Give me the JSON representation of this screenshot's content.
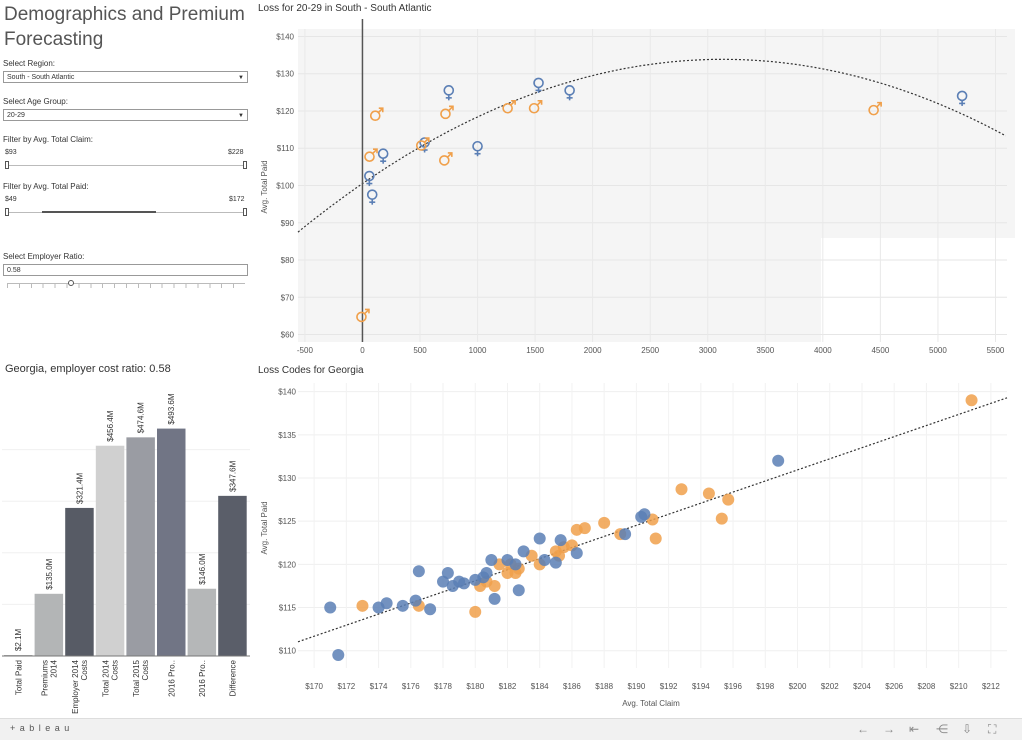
{
  "dashboard": {
    "title": "Demographics and Premium Forecasting"
  },
  "filters": {
    "region_label": "Select Region:",
    "region_value": "South - South Atlantic",
    "age_label": "Select Age Group:",
    "age_value": "20-29",
    "claim_label": "Filter by Avg. Total Claim:",
    "claim_min": "$93",
    "claim_max": "$228",
    "paid_label": "Filter by Avg. Total Paid:",
    "paid_min": "$49",
    "paid_max": "$172",
    "ratio_label": "Select Employer Ratio:",
    "ratio_value": "0.58"
  },
  "loss_chart": {
    "title": "Loss for 20-29 in South - South Atlantic",
    "ylabel": "Avg. Total Paid"
  },
  "georgia_bar": {
    "title": "Georgia, employer cost ratio: 0.58"
  },
  "loss_codes": {
    "title": "Loss Codes for Georgia",
    "ylabel": "Avg. Total Paid",
    "xlabel": "Avg. Total Claim"
  },
  "footer": {
    "logo": "+ a b l e a u"
  },
  "colors": {
    "female": "#5b7fb5",
    "male": "#f0a04b",
    "bar_total_paid": "#a9a9a9",
    "bar_premiums": "#b3b5b6",
    "bar_employer": "#575b65",
    "bar_total2014": "#d0d0d0",
    "bar_total2015": "#9a9ca3",
    "bar_2016pro": "#717585",
    "bar_2016pro2": "#b5b7b8",
    "bar_difference": "#5a5e69"
  },
  "chart_data": [
    {
      "type": "scatter",
      "title": "Loss for 20-29 in South - South Atlantic",
      "ylabel": "Avg. Total Paid",
      "xlim": [
        -560,
        5600
      ],
      "ylim": [
        58,
        142
      ],
      "x_ticks": [
        "-500",
        "0",
        "500",
        "1000",
        "1500",
        "2000",
        "2500",
        "3000",
        "3500",
        "4000",
        "4500",
        "5000",
        "5500"
      ],
      "x_tick_values": [
        -500,
        0,
        500,
        1000,
        1500,
        2000,
        2500,
        3000,
        3500,
        4000,
        4500,
        5000,
        5500
      ],
      "y_ticks": [
        "$60",
        "$70",
        "$80",
        "$90",
        "$100",
        "$110",
        "$120",
        "$130",
        "$140"
      ],
      "y_tick_values": [
        60,
        70,
        80,
        90,
        100,
        110,
        120,
        130,
        140
      ],
      "series": [
        {
          "name": "female",
          "points": [
            [
              60,
              102
            ],
            [
              85,
              97
            ],
            [
              180,
              108
            ],
            [
              540,
              111
            ],
            [
              750,
              125
            ],
            [
              1000,
              110
            ],
            [
              1530,
              127
            ],
            [
              1800,
              125
            ],
            [
              5210,
              123.5
            ]
          ]
        },
        {
          "name": "male",
          "points": [
            [
              0,
              65
            ],
            [
              70,
              108
            ],
            [
              120,
              119
            ],
            [
              520,
              111
            ],
            [
              720,
              107
            ],
            [
              730,
              119.5
            ],
            [
              1270,
              121
            ],
            [
              1500,
              121
            ],
            [
              4450,
              120.5
            ]
          ]
        }
      ],
      "trend": "polynomial"
    },
    {
      "type": "bar",
      "title": "Georgia, employer cost ratio: 0.58",
      "categories": [
        "Total Paid",
        "Premiums 2014",
        "Employer 2014 Costs",
        "Total 2014 Costs",
        "Total 2015 Costs",
        "2016 Pro..",
        "2016 Pro..",
        "Difference"
      ],
      "values": [
        2.1,
        135.0,
        321.4,
        456.4,
        474.6,
        493.6,
        146.0,
        347.6
      ],
      "labels": [
        "$2.1M",
        "$135.0M",
        "$321.4M",
        "$456.4M",
        "$474.6M",
        "$493.6M",
        "$146.0M",
        "$347.6M"
      ],
      "ylim": [
        0,
        560
      ]
    },
    {
      "type": "scatter",
      "title": "Loss Codes for Georgia",
      "xlabel": "Avg. Total Claim",
      "ylabel": "Avg. Total Paid",
      "xlim": [
        169,
        213
      ],
      "ylim": [
        108,
        141
      ],
      "x_ticks": [
        "$170",
        "$172",
        "$174",
        "$176",
        "$178",
        "$180",
        "$182",
        "$184",
        "$186",
        "$188",
        "$190",
        "$192",
        "$194",
        "$196",
        "$198",
        "$200",
        "$202",
        "$204",
        "$206",
        "$208",
        "$210",
        "$212"
      ],
      "x_tick_values": [
        170,
        172,
        174,
        176,
        178,
        180,
        182,
        184,
        186,
        188,
        190,
        192,
        194,
        196,
        198,
        200,
        202,
        204,
        206,
        208,
        210,
        212
      ],
      "y_ticks": [
        "$110",
        "$115",
        "$120",
        "$125",
        "$130",
        "$135",
        "$140"
      ],
      "y_tick_values": [
        110,
        115,
        120,
        125,
        130,
        135,
        140
      ],
      "series": [
        {
          "name": "blue",
          "points": [
            [
              171,
              115
            ],
            [
              171.5,
              109.5
            ],
            [
              174,
              115
            ],
            [
              174.5,
              115.5
            ],
            [
              175.5,
              115.2
            ],
            [
              176.3,
              115.8
            ],
            [
              176.5,
              119.2
            ],
            [
              177.2,
              114.8
            ],
            [
              178,
              118
            ],
            [
              178.3,
              119
            ],
            [
              178.6,
              117.5
            ],
            [
              179,
              118
            ],
            [
              179.3,
              117.8
            ],
            [
              180,
              118.2
            ],
            [
              180.5,
              118.5
            ],
            [
              180.7,
              119
            ],
            [
              181,
              120.5
            ],
            [
              181.2,
              116
            ],
            [
              182,
              120.5
            ],
            [
              182.5,
              120
            ],
            [
              182.7,
              117
            ],
            [
              183,
              121.5
            ],
            [
              184,
              123
            ],
            [
              184.3,
              120.5
            ],
            [
              185,
              120.2
            ],
            [
              185.3,
              122.8
            ],
            [
              186.3,
              121.3
            ],
            [
              189.3,
              123.5
            ],
            [
              190.3,
              125.5
            ],
            [
              190.5,
              125.8
            ],
            [
              198.8,
              132
            ]
          ]
        },
        {
          "name": "orange",
          "points": [
            [
              173,
              115.2
            ],
            [
              176.5,
              115.2
            ],
            [
              180,
              114.5
            ],
            [
              180.3,
              117.5
            ],
            [
              180.7,
              118
            ],
            [
              181.2,
              117.5
            ],
            [
              181.5,
              120
            ],
            [
              182,
              119
            ],
            [
              182.2,
              120
            ],
            [
              182.5,
              119
            ],
            [
              182.7,
              119.5
            ],
            [
              183.5,
              121
            ],
            [
              184,
              120
            ],
            [
              185,
              121.5
            ],
            [
              185.2,
              121
            ],
            [
              185.5,
              122
            ],
            [
              186,
              122.2
            ],
            [
              186.3,
              124
            ],
            [
              186.8,
              124.2
            ],
            [
              188,
              124.8
            ],
            [
              189,
              123.5
            ],
            [
              191,
              125.2
            ],
            [
              191.2,
              123
            ],
            [
              192.8,
              128.7
            ],
            [
              194.5,
              128.2
            ],
            [
              195.3,
              125.3
            ],
            [
              195.7,
              127.5
            ],
            [
              210.8,
              139
            ]
          ]
        }
      ],
      "trend": "linear"
    }
  ]
}
